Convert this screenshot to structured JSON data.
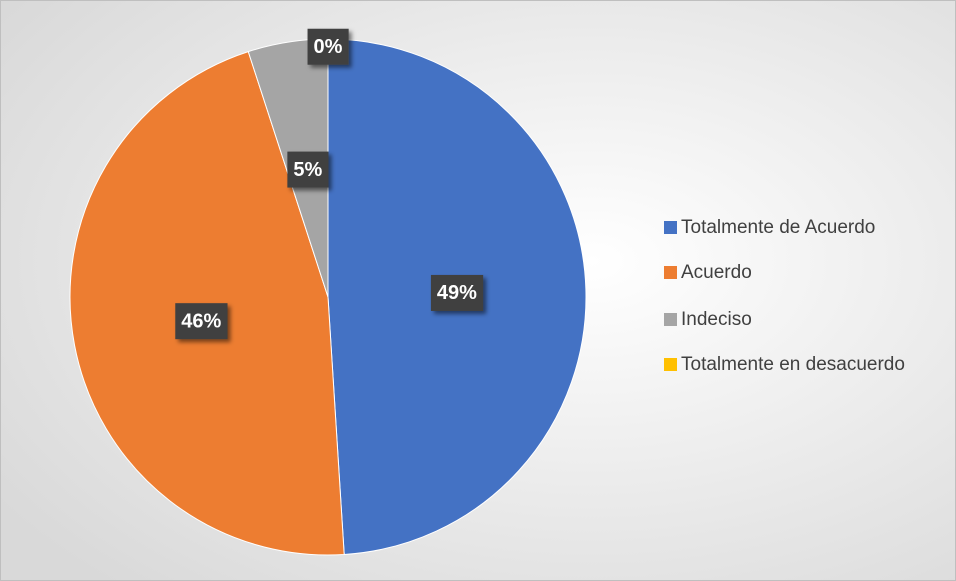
{
  "chart_data": {
    "type": "pie",
    "categories": [
      "Totalmente de Acuerdo",
      "Acuerdo",
      "Indeciso",
      "Totalmente en desacuerdo"
    ],
    "values": [
      49,
      46,
      5,
      0
    ],
    "value_labels": [
      "49%",
      "46%",
      "5%",
      "0%"
    ],
    "colors": [
      "#4472c4",
      "#ed7d31",
      "#a5a5a5",
      "#ffc000"
    ],
    "legend": "right"
  }
}
